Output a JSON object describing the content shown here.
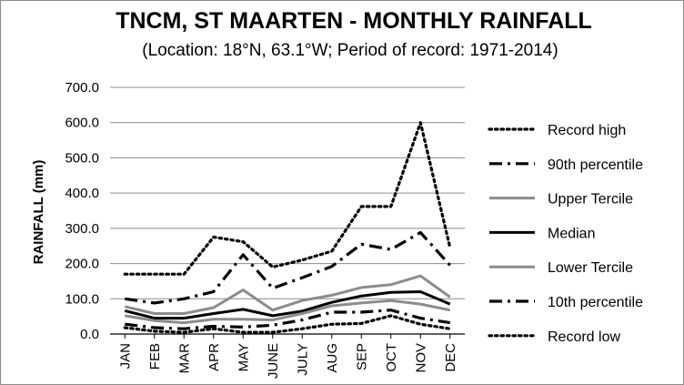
{
  "chart_data": {
    "type": "line",
    "title": "TNCM, ST MAARTEN - MONTHLY RAINFALL",
    "subtitle": "(Location: 18°N, 63.1°W; Period of record: 1971-2014)",
    "ylabel": "RAINFALL (mm)",
    "xlabel": "",
    "ylim": [
      0,
      700
    ],
    "ytick_values": [
      0,
      100,
      200,
      300,
      400,
      500,
      600,
      700
    ],
    "yticks": [
      "0.0",
      "100.0",
      "200.0",
      "300.0",
      "400.0",
      "500.0",
      "600.0",
      "700.0"
    ],
    "grid": true,
    "legend_position": "right",
    "categories": [
      "JAN",
      "FEB",
      "MAR",
      "APR",
      "MAY",
      "JUNE",
      "JULY",
      "AUG",
      "SEP",
      "OCT",
      "NOV",
      "DEC"
    ],
    "series": [
      {
        "name": "Record high",
        "style": "dotted",
        "color": "#000000",
        "values": [
          170,
          170,
          170,
          275,
          262,
          190,
          210,
          235,
          362,
          362,
          600,
          245
        ]
      },
      {
        "name": "90th percentile",
        "style": "dashdot",
        "color": "#000000",
        "values": [
          100,
          88,
          100,
          120,
          225,
          130,
          160,
          192,
          255,
          240,
          288,
          195
        ]
      },
      {
        "name": "Upper Tercile",
        "style": "solid",
        "color": "#8c8c8c",
        "values": [
          78,
          58,
          58,
          75,
          125,
          68,
          95,
          110,
          132,
          140,
          165,
          105
        ]
      },
      {
        "name": "Median",
        "style": "solid",
        "color": "#000000",
        "values": [
          66,
          45,
          45,
          58,
          70,
          52,
          65,
          90,
          108,
          118,
          120,
          85
        ]
      },
      {
        "name": "Lower Tercile",
        "style": "solid",
        "color": "#8c8c8c",
        "values": [
          52,
          38,
          32,
          42,
          42,
          40,
          58,
          80,
          88,
          95,
          85,
          68
        ]
      },
      {
        "name": "10th percentile",
        "style": "dashdot",
        "color": "#000000",
        "values": [
          28,
          18,
          15,
          22,
          20,
          25,
          40,
          62,
          62,
          68,
          45,
          32
        ]
      },
      {
        "name": "Record low",
        "style": "dotted",
        "color": "#000000",
        "values": [
          18,
          8,
          5,
          15,
          5,
          5,
          15,
          28,
          30,
          52,
          28,
          15
        ]
      }
    ]
  }
}
